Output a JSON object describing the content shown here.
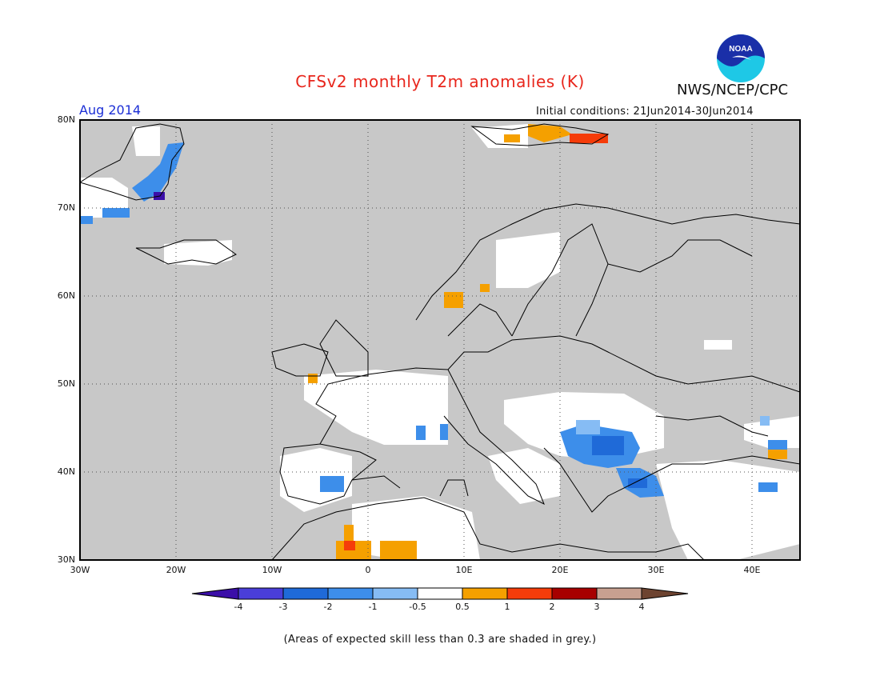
{
  "header": {
    "title": "CFSv2 monthly T2m anomalies (K)",
    "org": "NWS/NCEP/CPC",
    "logo_text": "NOAA",
    "month": "Aug 2014",
    "initial_conditions": "Initial conditions: 21Jun2014-30Jun2014"
  },
  "map": {
    "lon_labels": [
      "30W",
      "20W",
      "10W",
      "0",
      "10E",
      "20E",
      "30E",
      "40E"
    ],
    "lat_labels": [
      "30N",
      "40N",
      "50N",
      "60N",
      "70N",
      "80N"
    ],
    "lon_range": [
      -30,
      45
    ],
    "lat_range": [
      30,
      80
    ],
    "grey_color": "#c8c8c8"
  },
  "colorbar": {
    "tick_labels": [
      "-4",
      "-3",
      "-2",
      "-1",
      "-0.5",
      "0.5",
      "1",
      "2",
      "3",
      "4"
    ],
    "colors": [
      "#3b0ea8",
      "#4a3ed8",
      "#1f6ad8",
      "#3d8eea",
      "#86bcf4",
      "#ffffff",
      "#f5a000",
      "#f53c0a",
      "#a70000",
      "#c8a090",
      "#6d4330"
    ]
  },
  "footer": {
    "note": "(Areas of expected skill less than 0.3 are shaded in grey.)"
  }
}
